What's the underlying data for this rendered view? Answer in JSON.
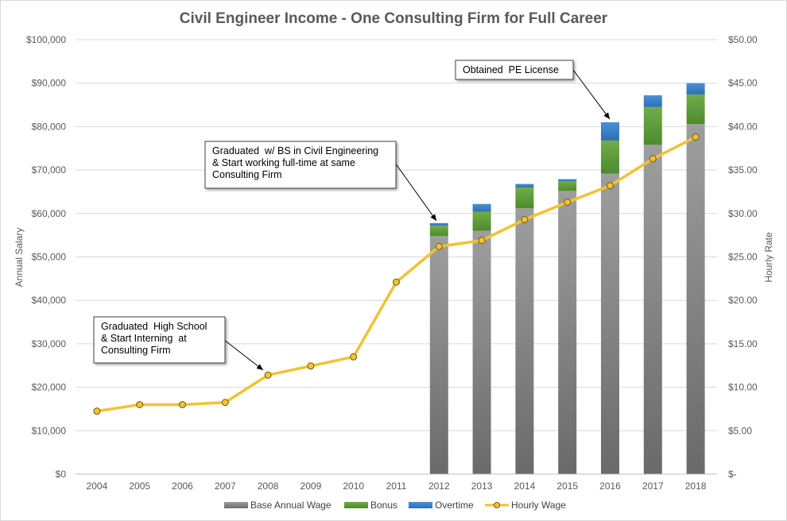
{
  "chart_data": {
    "type": "bar",
    "title": "Civil Engineer Income - One Consulting Firm for Full Career",
    "ylabel": "Annual Salary",
    "y2label": "Hourly Rate",
    "categories": [
      "2004",
      "2005",
      "2006",
      "2007",
      "2008",
      "2009",
      "2010",
      "2011",
      "2012",
      "2013",
      "2014",
      "2015",
      "2016",
      "2017",
      "2018"
    ],
    "ylim": [
      0,
      100000
    ],
    "y2lim": [
      0,
      50
    ],
    "y_ticks": [
      "$0",
      "$10,000",
      "$20,000",
      "$30,000",
      "$40,000",
      "$50,000",
      "$60,000",
      "$70,000",
      "$80,000",
      "$90,000",
      "$100,000"
    ],
    "y2_ticks": [
      "$-",
      "$5.00",
      "$10.00",
      "$15.00",
      "$20.00",
      "$25.00",
      "$30.00",
      "$35.00",
      "$40.00",
      "$45.00",
      "$50.00"
    ],
    "stacked": true,
    "grid": true,
    "legend_position": "bottom",
    "series": [
      {
        "name": "Base Annual Wage",
        "type": "bar",
        "axis": "left",
        "color": "#808080",
        "values": [
          null,
          null,
          null,
          null,
          null,
          null,
          null,
          null,
          54800,
          56000,
          61200,
          65200,
          69200,
          75800,
          80600
        ]
      },
      {
        "name": "Bonus",
        "type": "bar",
        "axis": "left",
        "color": "#5b9a37",
        "values": [
          null,
          null,
          null,
          null,
          null,
          null,
          null,
          null,
          2400,
          4400,
          4800,
          2200,
          7600,
          8700,
          6800
        ]
      },
      {
        "name": "Overtime",
        "type": "bar",
        "axis": "left",
        "color": "#3a7fc2",
        "values": [
          null,
          null,
          null,
          null,
          null,
          null,
          null,
          null,
          600,
          1800,
          800,
          500,
          4200,
          2700,
          2600
        ]
      },
      {
        "name": "Hourly Wage",
        "type": "line",
        "axis": "right",
        "color": "#f2c233",
        "values": [
          7.25,
          8.0,
          8.0,
          8.25,
          11.4,
          12.45,
          13.5,
          22.1,
          26.2,
          26.9,
          29.3,
          31.3,
          33.2,
          36.3,
          38.8
        ]
      }
    ],
    "annotations": [
      {
        "lines": [
          "Graduated  High School",
          "& Start Interning  at",
          "Consulting Firm"
        ],
        "target_category": "2008",
        "target_value": 11.4,
        "target_axis": "right"
      },
      {
        "lines": [
          "Graduated  w/ BS in Civil Engineering",
          "& Start working full-time at same",
          "Consulting Firm"
        ],
        "target_category": "2012",
        "target_value": 57800,
        "target_axis": "left"
      },
      {
        "lines": [
          "Obtained  PE License"
        ],
        "target_category": "2016",
        "target_value": 81000,
        "target_axis": "left"
      }
    ]
  }
}
